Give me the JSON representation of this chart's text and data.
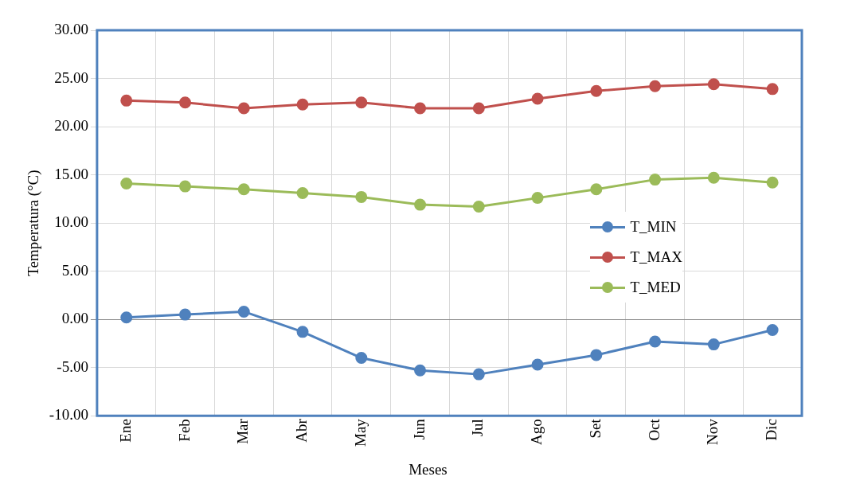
{
  "chart_data": {
    "type": "line",
    "xlabel": "Meses",
    "ylabel": "Temperatura (°C)",
    "categories": [
      "Ene",
      "Feb",
      "Mar",
      "Abr",
      "May",
      "Jun",
      "Jul",
      "Ago",
      "Set",
      "Oct",
      "Nov",
      "Dic"
    ],
    "series": [
      {
        "name": "T_MIN",
        "color": "#4f81bd",
        "values": [
          0.2,
          0.5,
          0.8,
          -1.3,
          -4.0,
          -5.3,
          -5.7,
          -4.7,
          -3.7,
          -2.3,
          -2.6,
          -1.1
        ]
      },
      {
        "name": "T_MAX",
        "color": "#c0504d",
        "values": [
          22.7,
          22.5,
          21.9,
          22.3,
          22.5,
          21.9,
          21.9,
          22.9,
          23.7,
          24.2,
          24.4,
          23.9
        ]
      },
      {
        "name": "T_MED",
        "color": "#9bbb59",
        "values": [
          14.1,
          13.8,
          13.5,
          13.1,
          12.7,
          11.9,
          11.7,
          12.6,
          13.5,
          14.5,
          14.7,
          14.2
        ]
      }
    ],
    "ylim": [
      -10,
      30
    ],
    "yticks": [
      {
        "value": -10,
        "label": "-10.00"
      },
      {
        "value": -5,
        "label": "-5.00"
      },
      {
        "value": 0,
        "label": "0.00"
      },
      {
        "value": 5,
        "label": "5.00"
      },
      {
        "value": 10,
        "label": "10.00"
      },
      {
        "value": 15,
        "label": "15.00"
      },
      {
        "value": 20,
        "label": "20.00"
      },
      {
        "value": 25,
        "label": "25.00"
      },
      {
        "value": 30,
        "label": "30.00"
      }
    ],
    "grid": true,
    "legend": "right",
    "marker": "circle",
    "line_style": "solid"
  }
}
